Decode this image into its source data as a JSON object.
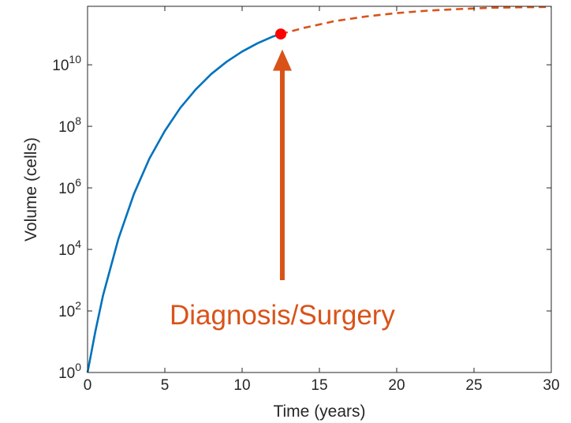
{
  "chart_data": {
    "type": "line",
    "title": "",
    "xlabel": "Time (years)",
    "ylabel": "Volume (cells)",
    "xlim": [
      0,
      30
    ],
    "ylim_log10": [
      0,
      11.9
    ],
    "yscale": "log",
    "grid": false,
    "x_ticks": [
      "0",
      "5",
      "10",
      "15",
      "20",
      "25",
      "30"
    ],
    "y_ticks": [
      {
        "base": "10",
        "exp": "0"
      },
      {
        "base": "10",
        "exp": "2"
      },
      {
        "base": "10",
        "exp": "4"
      },
      {
        "base": "10",
        "exp": "6"
      },
      {
        "base": "10",
        "exp": "8"
      },
      {
        "base": "10",
        "exp": "10"
      }
    ],
    "series": [
      {
        "style": "solid",
        "color": "#0072bd",
        "x": [
          0,
          0.5,
          1,
          2,
          3,
          4,
          5,
          6,
          7,
          8,
          9,
          10,
          11,
          12,
          12.5
        ],
        "y_log10": [
          0,
          1.32,
          2.5,
          4.35,
          5.8,
          6.95,
          7.85,
          8.6,
          9.2,
          9.7,
          10.1,
          10.43,
          10.7,
          10.92,
          11.0
        ]
      },
      {
        "style": "dashed",
        "color": "#d95319",
        "x": [
          12.5,
          14,
          16,
          18,
          20,
          22,
          24,
          26,
          28,
          30
        ],
        "y_log10": [
          11.0,
          11.2,
          11.42,
          11.57,
          11.68,
          11.76,
          11.81,
          11.85,
          11.87,
          11.88
        ]
      }
    ],
    "marker": {
      "x": 12.5,
      "y_log10": 11.0,
      "color": "#ff0000"
    },
    "annotation": {
      "text": "Diagnosis/Surgery",
      "color": "#d95319",
      "arrow_x": 12.6,
      "arrow_from_log10": 3.0,
      "arrow_to_log10": 10.5
    }
  }
}
